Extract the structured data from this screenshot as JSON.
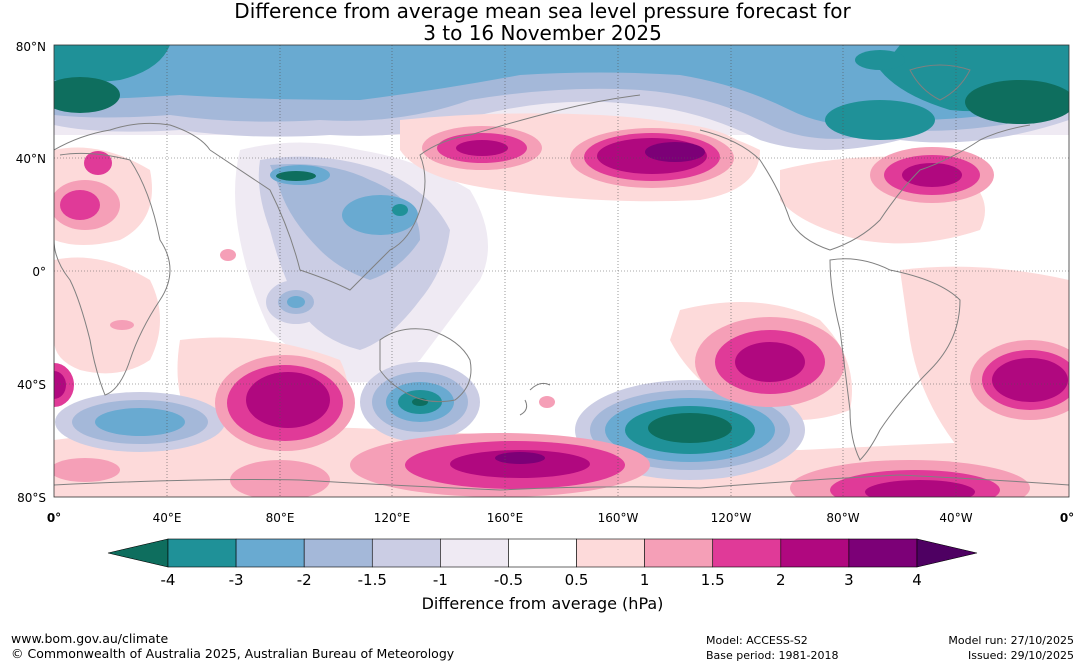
{
  "title": {
    "line1": "Difference from average mean sea level pressure forecast for",
    "line2": "3 to 16 November 2025"
  },
  "map": {
    "lat_labels": [
      "80°N",
      "40°N",
      "0°",
      "40°S",
      "80°S"
    ],
    "lon_labels": [
      "0°",
      "40°E",
      "80°E",
      "120°E",
      "160°E",
      "160°W",
      "120°W",
      "80°W",
      "40°W",
      "0°"
    ],
    "anomaly_regions": [
      {
        "name": "north-pacific-high",
        "lon": -150,
        "lat": 42,
        "level": "3 to 4"
      },
      {
        "name": "northwest-pacific-high",
        "lon": 155,
        "lat": 42,
        "level": "2 to 3"
      },
      {
        "name": "north-atlantic-high",
        "lon": -48,
        "lat": 33,
        "level": "2 to 3"
      },
      {
        "name": "southeast-pacific-high",
        "lon": -105,
        "lat": -30,
        "level": "2 to 3"
      },
      {
        "name": "south-indian-high",
        "lon": 87,
        "lat": -42,
        "level": "3"
      },
      {
        "name": "south-atlantic-high",
        "lon": -12,
        "lat": -40,
        "level": "2 to 3"
      },
      {
        "name": "southern-ocean-high",
        "lon": 165,
        "lat": -68,
        "level": "3 to 4"
      },
      {
        "name": "southeast-pacific-low",
        "lon": -132,
        "lat": -55,
        "level": "-3 to -4"
      },
      {
        "name": "south-of-australia-low",
        "lon": 130,
        "lat": -45,
        "level": "-3 to -4"
      },
      {
        "name": "southwest-indian-low",
        "lon": 30,
        "lat": -53,
        "level": "-2"
      },
      {
        "name": "arctic-low-atlantic",
        "lon": -25,
        "lat": 70,
        "level": "-4"
      },
      {
        "name": "arctic-low-siberia",
        "lon": 10,
        "lat": 70,
        "level": "-4"
      }
    ]
  },
  "colorbar": {
    "tick_labels": [
      "-4",
      "-3",
      "-2",
      "-1.5",
      "-1",
      "-0.5",
      "0.5",
      "1",
      "1.5",
      "2",
      "3",
      "4"
    ],
    "colors": [
      "#0e6e5e",
      "#1f9198",
      "#69aad1",
      "#a4b8d9",
      "#cbcde4",
      "#efeaf3",
      "#ffffff",
      "#fddada",
      "#f59fb7",
      "#e03a98",
      "#b0087f",
      "#7c0077",
      "#4e0062"
    ],
    "label": "Difference from average (hPa)"
  },
  "footer": {
    "website": "www.bom.gov.au/climate",
    "copyright": "© Commonwealth of Australia 2025, Australian Bureau of Meteorology",
    "model": "Model: ACCESS-S2",
    "base_period": "Base period: 1981-2018",
    "model_run": "Model run: 27/10/2025",
    "issued": "Issued: 29/10/2025"
  }
}
